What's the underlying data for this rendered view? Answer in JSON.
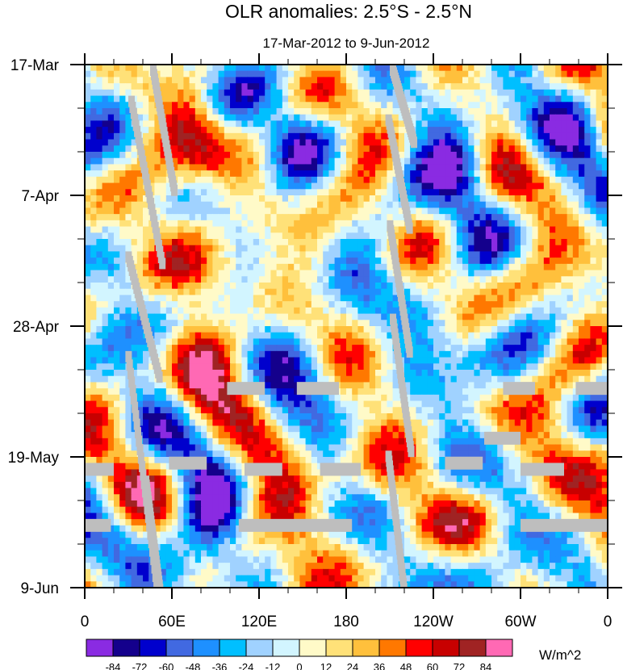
{
  "chart_data": {
    "type": "heatmap",
    "title": "OLR anomalies: 2.5°S - 2.5°N",
    "subtitle": "17-Mar-2012 to 9-Jun-2012",
    "xlabel": "",
    "ylabel": "",
    "x_ticks": [
      {
        "lon": 0,
        "label": "0"
      },
      {
        "lon": 60,
        "label": "60E"
      },
      {
        "lon": 120,
        "label": "120E"
      },
      {
        "lon": 180,
        "label": "180"
      },
      {
        "lon": 240,
        "label": "120W"
      },
      {
        "lon": 300,
        "label": "60W"
      },
      {
        "lon": 360,
        "label": "0"
      }
    ],
    "y_ticks": [
      {
        "day": 0,
        "label": "17-Mar"
      },
      {
        "day": 21,
        "label": "7-Apr"
      },
      {
        "day": 42,
        "label": "28-Apr"
      },
      {
        "day": 63,
        "label": "19-May"
      },
      {
        "day": 84,
        "label": "9-Jun"
      }
    ],
    "xlim": [
      0,
      360
    ],
    "ylim_days": [
      0,
      84
    ],
    "colorbar": {
      "units": "W/m^2",
      "levels": [
        -84,
        -72,
        -60,
        -48,
        -36,
        -24,
        -12,
        0,
        12,
        24,
        36,
        48,
        60,
        72,
        84
      ],
      "colors": [
        "#8a2be2",
        "#14008c",
        "#0000cd",
        "#4169e1",
        "#1e90ff",
        "#00bfff",
        "#a0d2ff",
        "#d2f5ff",
        "#fffac8",
        "#ffe178",
        "#ffc03c",
        "#ff7800",
        "#ff0000",
        "#c80000",
        "#a02323",
        "#ff69b4"
      ]
    },
    "missing_color": "#bebebe",
    "features": [
      {
        "desc": "positive anomaly band",
        "lon": [
          55,
          95
        ],
        "days": [
          0,
          20
        ],
        "value": 40
      },
      {
        "desc": "positive anomaly band",
        "lon": [
          60,
          100
        ],
        "days": [
          40,
          55
        ],
        "value": 44
      },
      {
        "desc": "negative anomaly",
        "lon": [
          120,
          170
        ],
        "days": [
          0,
          30
        ],
        "value": -40
      },
      {
        "desc": "negative anomaly",
        "lon": [
          65,
          110
        ],
        "days": [
          64,
          80
        ],
        "value": -55
      },
      {
        "desc": "negative anomaly",
        "lon": [
          240,
          280
        ],
        "days": [
          12,
          25
        ],
        "value": -45
      },
      {
        "desc": "positive anomaly",
        "lon": [
          300,
          350
        ],
        "days": [
          54,
          76
        ],
        "value": 38
      },
      {
        "desc": "positive anomaly",
        "lon": [
          180,
          240
        ],
        "days": [
          0,
          20
        ],
        "value": 20
      }
    ]
  }
}
